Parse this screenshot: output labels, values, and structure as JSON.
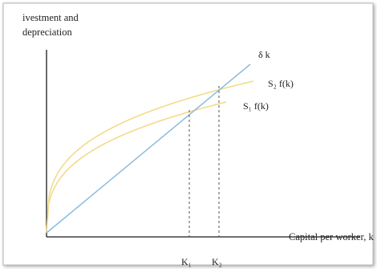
{
  "diagram": {
    "y_axis_label_line1": "ivestment and",
    "y_axis_label_line2": "depreciation",
    "x_axis_label": "Capital per worker, k",
    "depreciation_line_label": "δ k",
    "upper_curve_label": "S₂ f(k)",
    "lower_curve_label": "S₁ f(k)",
    "tick_k1_label": "K₁",
    "tick_k2_label": "K₂"
  },
  "colors": {
    "axis": "#1a1a1a",
    "depreciation_line": "#8bbbe0",
    "saving_curves": "#f3db8a",
    "guide_lines": "#444444",
    "frame_shadow": "#9a9a9a"
  }
}
